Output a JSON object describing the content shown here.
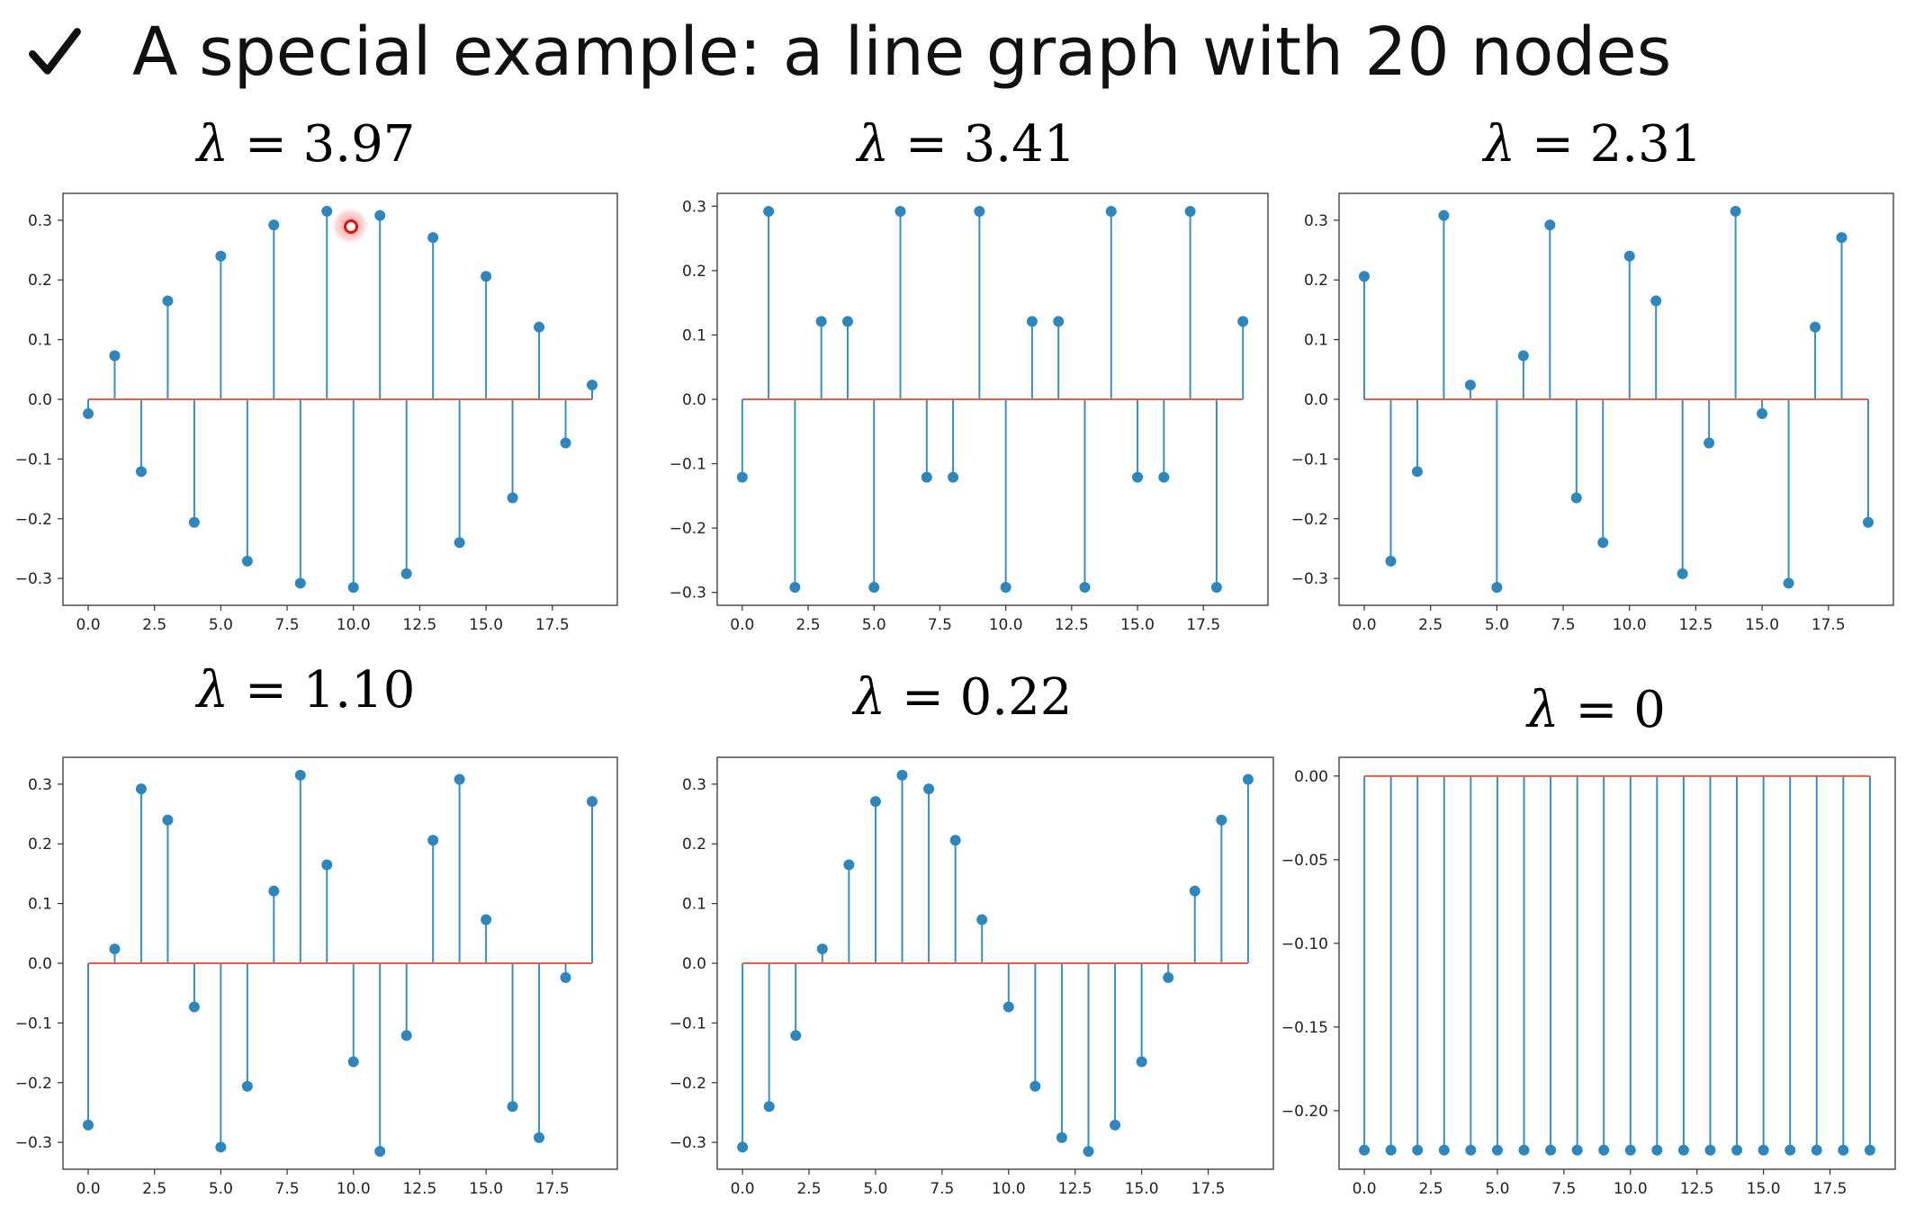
{
  "page": {
    "heading": "A special example: a line graph with 20 nodes",
    "check_icon": "checkmark-icon"
  },
  "colors": {
    "stem": "#3b8fbd",
    "marker": "#2f86bd",
    "baseline": "#e0604a",
    "frame": "#333333",
    "cursor": "#e01010"
  },
  "chart_data": [
    {
      "type": "stem",
      "title_symbol": "λ",
      "title_value": "= 3.97",
      "x": [
        0,
        1,
        2,
        3,
        4,
        5,
        6,
        7,
        8,
        9,
        10,
        11,
        12,
        13,
        14,
        15,
        16,
        17,
        18,
        19
      ],
      "values": [
        -0.024,
        0.073,
        -0.121,
        0.165,
        -0.206,
        0.24,
        -0.271,
        0.292,
        -0.308,
        0.315,
        -0.315,
        0.308,
        -0.292,
        0.271,
        -0.24,
        0.206,
        -0.165,
        0.121,
        -0.073,
        0.024
      ],
      "xlim": [
        -0.95,
        19.95
      ],
      "ylim": [
        -0.345,
        0.345
      ],
      "xticks": [
        "0.0",
        "2.5",
        "5.0",
        "7.5",
        "10.0",
        "12.5",
        "15.0",
        "17.5"
      ],
      "yticks": [
        "0.3",
        "0.2",
        "0.1",
        "0.0",
        "−0.1",
        "−0.2",
        "−0.3"
      ]
    },
    {
      "type": "stem",
      "title_symbol": "λ",
      "title_value": "= 3.41",
      "x": [
        0,
        1,
        2,
        3,
        4,
        5,
        6,
        7,
        8,
        9,
        10,
        11,
        12,
        13,
        14,
        15,
        16,
        17,
        18,
        19
      ],
      "values": [
        -0.121,
        0.292,
        -0.292,
        0.121,
        0.121,
        -0.292,
        0.292,
        -0.121,
        -0.121,
        0.292,
        -0.292,
        0.121,
        0.121,
        -0.292,
        0.292,
        -0.121,
        -0.121,
        0.292,
        -0.292,
        0.121
      ],
      "xlim": [
        -0.95,
        19.95
      ],
      "ylim": [
        -0.32,
        0.32
      ],
      "xticks": [
        "0.0",
        "2.5",
        "5.0",
        "7.5",
        "10.0",
        "12.5",
        "15.0",
        "17.5"
      ],
      "yticks": [
        "0.3",
        "0.2",
        "0.1",
        "0.0",
        "−0.1",
        "−0.2",
        "−0.3"
      ]
    },
    {
      "type": "stem",
      "title_symbol": "λ",
      "title_value": "= 2.31",
      "x": [
        0,
        1,
        2,
        3,
        4,
        5,
        6,
        7,
        8,
        9,
        10,
        11,
        12,
        13,
        14,
        15,
        16,
        17,
        18,
        19
      ],
      "values": [
        0.206,
        -0.271,
        -0.121,
        0.308,
        0.024,
        -0.315,
        0.073,
        0.292,
        -0.165,
        -0.24,
        0.24,
        0.165,
        -0.292,
        -0.073,
        0.315,
        -0.024,
        -0.308,
        0.121,
        0.271,
        -0.206
      ],
      "xlim": [
        -0.95,
        19.95
      ],
      "ylim": [
        -0.345,
        0.345
      ],
      "xticks": [
        "0.0",
        "2.5",
        "5.0",
        "7.5",
        "10.0",
        "12.5",
        "15.0",
        "17.5"
      ],
      "yticks": [
        "0.3",
        "0.2",
        "0.1",
        "0.0",
        "−0.1",
        "−0.2",
        "−0.3"
      ]
    },
    {
      "type": "stem",
      "title_symbol": "λ",
      "title_value": "= 1.10",
      "x": [
        0,
        1,
        2,
        3,
        4,
        5,
        6,
        7,
        8,
        9,
        10,
        11,
        12,
        13,
        14,
        15,
        16,
        17,
        18,
        19
      ],
      "values": [
        -0.271,
        0.024,
        0.292,
        0.24,
        -0.073,
        -0.308,
        -0.206,
        0.121,
        0.315,
        0.165,
        -0.165,
        -0.315,
        -0.121,
        0.206,
        0.308,
        0.073,
        -0.24,
        -0.292,
        -0.024,
        0.271
      ],
      "xlim": [
        -0.95,
        19.95
      ],
      "ylim": [
        -0.345,
        0.345
      ],
      "xticks": [
        "0.0",
        "2.5",
        "5.0",
        "7.5",
        "10.0",
        "12.5",
        "15.0",
        "17.5"
      ],
      "yticks": [
        "0.3",
        "0.2",
        "0.1",
        "0.0",
        "−0.1",
        "−0.2",
        "−0.3"
      ]
    },
    {
      "type": "stem",
      "title_symbol": "λ",
      "title_value": "= 0.22",
      "x": [
        0,
        1,
        2,
        3,
        4,
        5,
        6,
        7,
        8,
        9,
        10,
        11,
        12,
        13,
        14,
        15,
        16,
        17,
        18,
        19
      ],
      "values": [
        -0.308,
        -0.24,
        -0.121,
        0.024,
        0.165,
        0.271,
        0.315,
        0.292,
        0.206,
        0.073,
        -0.073,
        -0.206,
        -0.292,
        -0.315,
        -0.271,
        -0.165,
        -0.024,
        0.121,
        0.24,
        0.308
      ],
      "xlim": [
        -0.95,
        19.95
      ],
      "ylim": [
        -0.345,
        0.345
      ],
      "xticks": [
        "0.0",
        "2.5",
        "5.0",
        "7.5",
        "10.0",
        "12.5",
        "15.0",
        "17.5"
      ],
      "yticks": [
        "0.3",
        "0.2",
        "0.1",
        "0.0",
        "−0.1",
        "−0.2",
        "−0.3"
      ]
    },
    {
      "type": "stem",
      "title_symbol": "λ",
      "title_value": "= 0",
      "x": [
        0,
        1,
        2,
        3,
        4,
        5,
        6,
        7,
        8,
        9,
        10,
        11,
        12,
        13,
        14,
        15,
        16,
        17,
        18,
        19
      ],
      "values": [
        -0.2236,
        -0.2236,
        -0.2236,
        -0.2236,
        -0.2236,
        -0.2236,
        -0.2236,
        -0.2236,
        -0.2236,
        -0.2236,
        -0.2236,
        -0.2236,
        -0.2236,
        -0.2236,
        -0.2236,
        -0.2236,
        -0.2236,
        -0.2236,
        -0.2236,
        -0.2236
      ],
      "xlim": [
        -0.95,
        19.95
      ],
      "ylim": [
        -0.235,
        0.0112
      ],
      "xticks": [
        "0.0",
        "2.5",
        "5.0",
        "7.5",
        "10.0",
        "12.5",
        "15.0",
        "17.5"
      ],
      "yticks": [
        "0.00",
        "−0.05",
        "−0.10",
        "−0.15",
        "−0.20"
      ]
    }
  ]
}
